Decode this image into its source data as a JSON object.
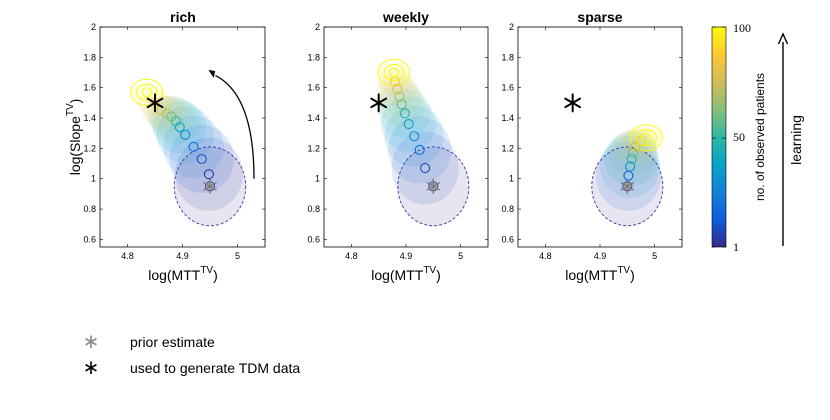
{
  "chart_data": [
    {
      "type": "scatter",
      "title": "rich",
      "xlabel": "log(MTT",
      "xlabel_sup": "TV",
      "xlabel_close": ")",
      "ylabel": "log(Slope",
      "ylabel_sup": "TV",
      "ylabel_close": ")",
      "xlim": [
        4.75,
        5.05
      ],
      "ylim": [
        0.55,
        2.0
      ],
      "xticks": [
        "4.8",
        "4.9",
        "5"
      ],
      "xtick_values": [
        4.8,
        4.9,
        5.0
      ],
      "yticks": [
        "0.6",
        "0.8",
        "1",
        "1.2",
        "1.4",
        "1.6",
        "1.8",
        "2"
      ],
      "ytick_values": [
        0.6,
        0.8,
        1.0,
        1.2,
        1.4,
        1.6,
        1.8,
        2.0
      ],
      "prior_estimate": {
        "x": 4.95,
        "y": 0.95
      },
      "true_value": {
        "x": 4.85,
        "y": 1.5
      },
      "trajectory": [
        {
          "x": 4.95,
          "y": 0.95,
          "n": 1
        },
        {
          "x": 4.948,
          "y": 1.03,
          "n": 5
        },
        {
          "x": 4.935,
          "y": 1.13,
          "n": 12
        },
        {
          "x": 4.92,
          "y": 1.21,
          "n": 20
        },
        {
          "x": 4.905,
          "y": 1.29,
          "n": 30
        },
        {
          "x": 4.895,
          "y": 1.34,
          "n": 40
        },
        {
          "x": 4.888,
          "y": 1.38,
          "n": 50
        },
        {
          "x": 4.88,
          "y": 1.41,
          "n": 60
        },
        {
          "x": 4.872,
          "y": 1.43,
          "n": 70
        },
        {
          "x": 4.862,
          "y": 1.45,
          "n": 80
        },
        {
          "x": 4.85,
          "y": 1.5,
          "n": 90
        },
        {
          "x": 4.835,
          "y": 1.57,
          "n": 100
        }
      ],
      "arrow": true
    },
    {
      "type": "scatter",
      "title": "weekly",
      "xlabel": "log(MTT",
      "xlabel_sup": "TV",
      "xlabel_close": ")",
      "xlim": [
        4.75,
        5.05
      ],
      "ylim": [
        0.55,
        2.0
      ],
      "xticks": [
        "4.8",
        "4.9",
        "5"
      ],
      "xtick_values": [
        4.8,
        4.9,
        5.0
      ],
      "yticks": [
        "0.6",
        "0.8",
        "1",
        "1.2",
        "1.4",
        "1.6",
        "1.8",
        "2"
      ],
      "ytick_values": [
        0.6,
        0.8,
        1.0,
        1.2,
        1.4,
        1.6,
        1.8,
        2.0
      ],
      "prior_estimate": {
        "x": 4.95,
        "y": 0.95
      },
      "true_value": {
        "x": 4.85,
        "y": 1.5
      },
      "trajectory": [
        {
          "x": 4.95,
          "y": 0.95,
          "n": 1
        },
        {
          "x": 4.935,
          "y": 1.07,
          "n": 8
        },
        {
          "x": 4.925,
          "y": 1.19,
          "n": 18
        },
        {
          "x": 4.915,
          "y": 1.28,
          "n": 28
        },
        {
          "x": 4.905,
          "y": 1.36,
          "n": 38
        },
        {
          "x": 4.898,
          "y": 1.43,
          "n": 48
        },
        {
          "x": 4.892,
          "y": 1.49,
          "n": 58
        },
        {
          "x": 4.888,
          "y": 1.54,
          "n": 68
        },
        {
          "x": 4.884,
          "y": 1.59,
          "n": 78
        },
        {
          "x": 4.88,
          "y": 1.64,
          "n": 88
        },
        {
          "x": 4.878,
          "y": 1.7,
          "n": 100
        }
      ],
      "arrow": false
    },
    {
      "type": "scatter",
      "title": "sparse",
      "xlabel": "log(MTT",
      "xlabel_sup": "TV",
      "xlabel_close": ")",
      "xlim": [
        4.75,
        5.05
      ],
      "ylim": [
        0.55,
        2.0
      ],
      "xticks": [
        "4.8",
        "4.9",
        "5"
      ],
      "xtick_values": [
        4.8,
        4.9,
        5.0
      ],
      "yticks": [
        "0.6",
        "0.8",
        "1",
        "1.2",
        "1.4",
        "1.6",
        "1.8",
        "2"
      ],
      "ytick_values": [
        0.6,
        0.8,
        1.0,
        1.2,
        1.4,
        1.6,
        1.8,
        2.0
      ],
      "prior_estimate": {
        "x": 4.95,
        "y": 0.95
      },
      "true_value": {
        "x": 4.85,
        "y": 1.5
      },
      "trajectory": [
        {
          "x": 4.95,
          "y": 0.95,
          "n": 1
        },
        {
          "x": 4.952,
          "y": 1.02,
          "n": 15
        },
        {
          "x": 4.955,
          "y": 1.08,
          "n": 30
        },
        {
          "x": 4.958,
          "y": 1.13,
          "n": 45
        },
        {
          "x": 4.96,
          "y": 1.17,
          "n": 60
        },
        {
          "x": 4.965,
          "y": 1.21,
          "n": 75
        },
        {
          "x": 4.975,
          "y": 1.25,
          "n": 90
        },
        {
          "x": 4.985,
          "y": 1.27,
          "n": 100
        }
      ],
      "arrow": false
    }
  ],
  "colorbar": {
    "label": "no. of observed patients",
    "ticks": [
      "100",
      "50",
      "1"
    ],
    "tick_values": [
      100,
      50,
      1
    ],
    "range": [
      1,
      100
    ],
    "colors": [
      "#352a87",
      "#0f5cdd",
      "#1481d6",
      "#06a4ca",
      "#2eb7a4",
      "#87bf77",
      "#d1bb59",
      "#fec832",
      "#f9fb0e"
    ]
  },
  "learning_label": "learning",
  "legend": [
    {
      "symbol": "∗",
      "label": "prior estimate"
    },
    {
      "symbol": "∗",
      "label": "used to generate TDM data"
    }
  ]
}
